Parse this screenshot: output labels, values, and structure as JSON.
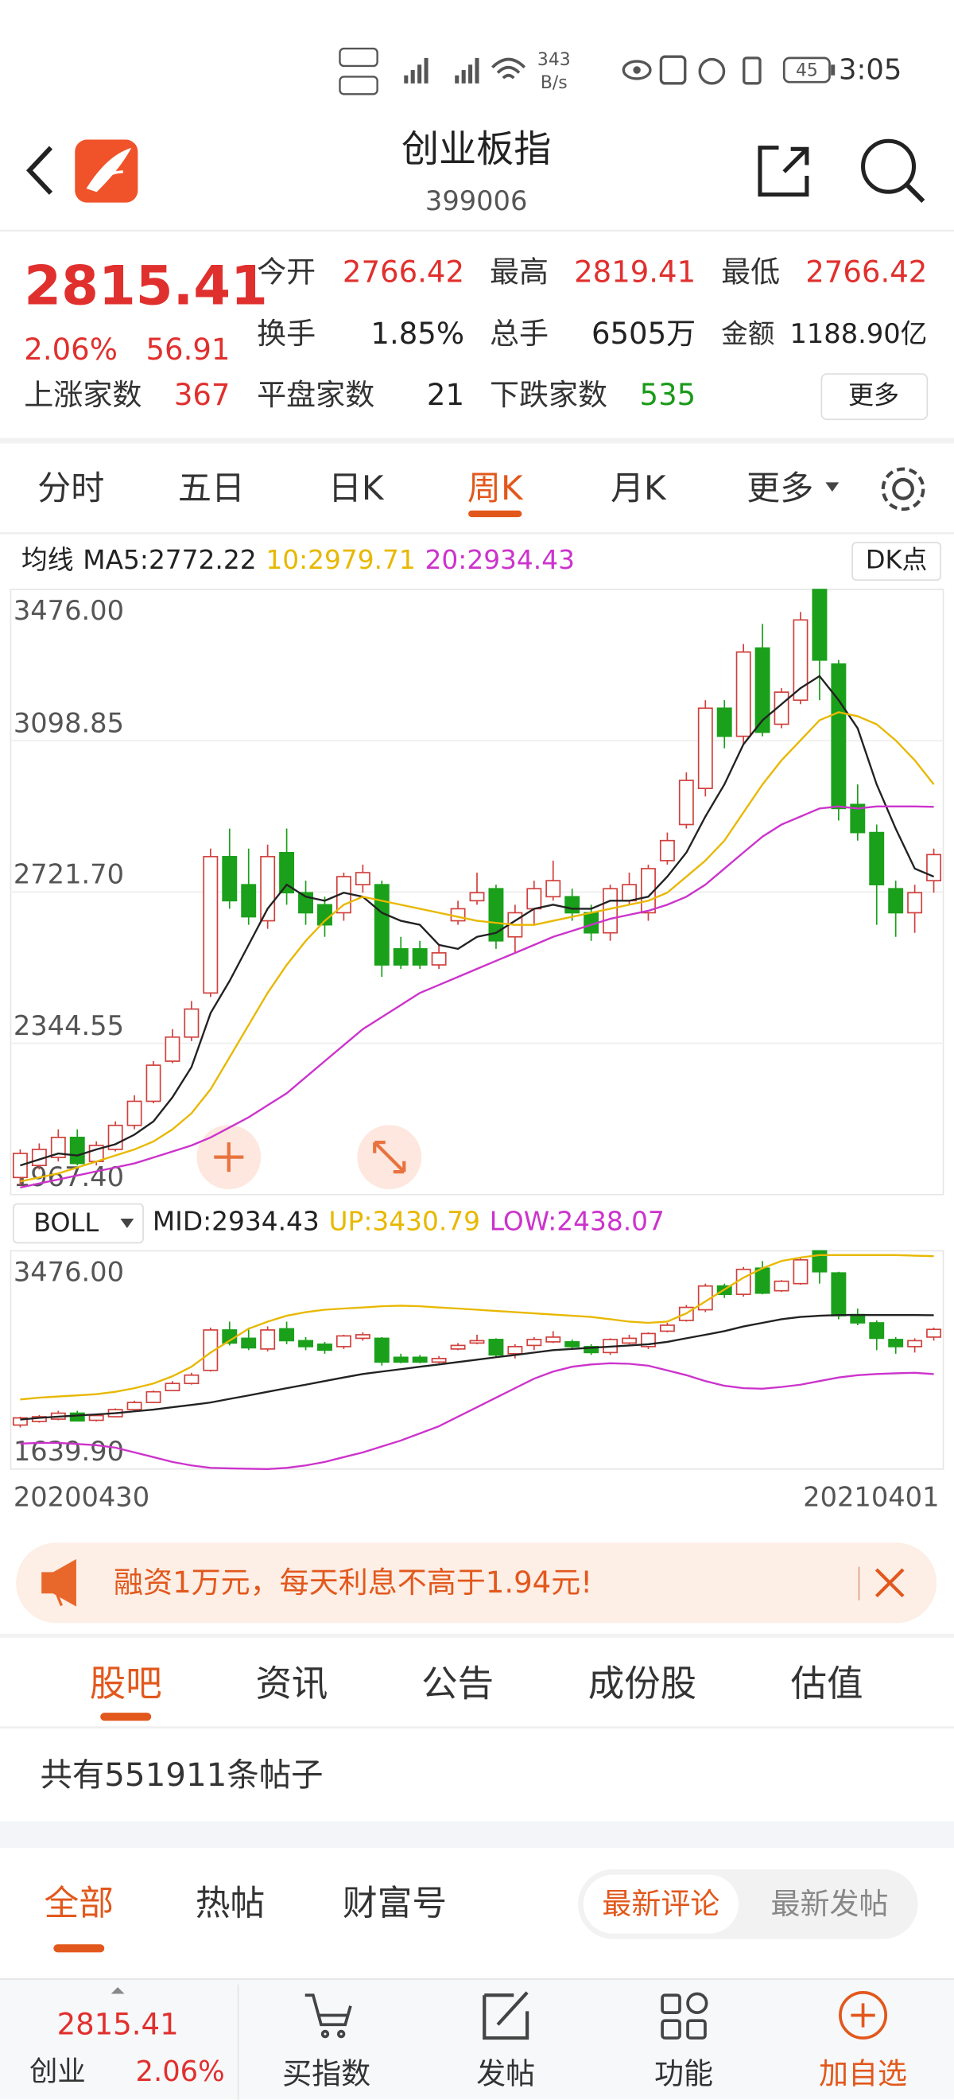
{
  "status_bar": {
    "speed": "343",
    "speed_unit": "B/s",
    "battery": "45",
    "time": "3:05"
  },
  "header": {
    "title": "创业板指",
    "code": "399006"
  },
  "quote": {
    "price": "2815.41",
    "change_pct": "2.06%",
    "change": "56.91",
    "stats": [
      {
        "label": "今开",
        "value": "2766.42",
        "color": "#e0302e"
      },
      {
        "label": "最高",
        "value": "2819.41",
        "color": "#e0302e"
      },
      {
        "label": "最低",
        "value": "2766.42",
        "color": "#e0302e"
      },
      {
        "label": "换手",
        "value": "1.85%",
        "color": "#222222"
      },
      {
        "label": "总手",
        "value": "6505万",
        "color": "#222222"
      },
      {
        "label": "金额",
        "value": "1188.90亿",
        "color": "#222222"
      },
      {
        "label": "上涨家数",
        "value": "367",
        "color": "#e0302e"
      },
      {
        "label": "平盘家数",
        "value": "21",
        "color": "#222222"
      },
      {
        "label": "下跌家数",
        "value": "535",
        "color": "#1a9a1a"
      }
    ],
    "more": "更多"
  },
  "period_tabs": [
    "分时",
    "五日",
    "日K",
    "周K",
    "月K",
    "更多"
  ],
  "active_period": 3,
  "chart_data": [
    {
      "type": "candlestick",
      "legend_title": "均线",
      "button": "DK点",
      "up_color": "#d0403c",
      "down_color": "#1aa01a",
      "grid": true,
      "ylim": [
        1967.4,
        3476
      ],
      "yticks": [
        {
          "value": 1967.4,
          "label": "1967.40"
        },
        2344.55,
        {
          "value": 2721.7,
          "label": "2721.70"
        },
        3098.85,
        {
          "value": 3476,
          "label": "3476.00"
        }
      ],
      "open": [
        2010,
        2040,
        2060,
        2110,
        2050,
        2080,
        2140,
        2200,
        2300,
        2360,
        2470,
        2810,
        2740,
        2650,
        2820,
        2720,
        2690,
        2670,
        2740,
        2740,
        2580,
        2580,
        2540,
        2650,
        2700,
        2730,
        2610,
        2680,
        2710,
        2710,
        2670,
        2620,
        2700,
        2670,
        2800,
        2890,
        2980,
        3180,
        3110,
        3330,
        3140,
        3200,
        3476,
        3290,
        2940,
        2870,
        2730,
        2670,
        2750
      ],
      "high": [
        2080,
        2095,
        2130,
        2130,
        2100,
        2150,
        2215,
        2300,
        2380,
        2450,
        2830,
        2880,
        2830,
        2840,
        2880,
        2750,
        2710,
        2770,
        2790,
        2750,
        2610,
        2600,
        2590,
        2700,
        2770,
        2740,
        2690,
        2750,
        2800,
        2730,
        2690,
        2740,
        2770,
        2790,
        2870,
        3020,
        3200,
        3200,
        3340,
        3390,
        3230,
        3420,
        3476,
        3300,
        2990,
        2890,
        2750,
        2740,
        2830
      ],
      "low": [
        1990,
        2030,
        2050,
        2040,
        2040,
        2075,
        2130,
        2195,
        2295,
        2350,
        2460,
        2680,
        2640,
        2630,
        2690,
        2640,
        2610,
        2650,
        2720,
        2510,
        2530,
        2530,
        2530,
        2640,
        2690,
        2580,
        2570,
        2640,
        2700,
        2650,
        2600,
        2600,
        2690,
        2650,
        2790,
        2880,
        2960,
        3080,
        3090,
        3110,
        3130,
        3190,
        3200,
        2900,
        2850,
        2640,
        2610,
        2620,
        2720
      ],
      "close": [
        2070,
        2080,
        2110,
        2045,
        2090,
        2140,
        2200,
        2290,
        2360,
        2430,
        2810,
        2700,
        2660,
        2810,
        2720,
        2670,
        2640,
        2760,
        2770,
        2540,
        2540,
        2540,
        2570,
        2680,
        2720,
        2600,
        2670,
        2730,
        2750,
        2670,
        2620,
        2730,
        2740,
        2780,
        2850,
        3000,
        3180,
        3110,
        3320,
        3120,
        3220,
        3400,
        3300,
        2930,
        2870,
        2740,
        2670,
        2720,
        2815
      ],
      "series": [
        {
          "label": "MA5:2772.22",
          "color": "#222222",
          "values": [
            2040,
            2055,
            2070,
            2065,
            2080,
            2093,
            2117,
            2150,
            2210,
            2285,
            2420,
            2500,
            2590,
            2680,
            2740,
            2710,
            2700,
            2720,
            2710,
            2670,
            2650,
            2640,
            2590,
            2580,
            2610,
            2620,
            2650,
            2680,
            2690,
            2680,
            2680,
            2700,
            2700,
            2710,
            2760,
            2820,
            2910,
            2990,
            3090,
            3150,
            3190,
            3230,
            3260,
            3200,
            3130,
            2990,
            2880,
            2780,
            2760
          ]
        },
        {
          "label": "10:2979.71",
          "color": "#e8b800",
          "values": [
            2000,
            2010,
            2020,
            2035,
            2050,
            2065,
            2080,
            2100,
            2130,
            2170,
            2230,
            2310,
            2390,
            2470,
            2540,
            2600,
            2650,
            2690,
            2710,
            2700,
            2690,
            2680,
            2670,
            2660,
            2650,
            2645,
            2640,
            2640,
            2650,
            2660,
            2670,
            2680,
            2690,
            2700,
            2720,
            2760,
            2800,
            2850,
            2920,
            2990,
            3050,
            3100,
            3150,
            3170,
            3160,
            3140,
            3100,
            3050,
            2990
          ]
        },
        {
          "label": "20:2934.43",
          "color": "#cc33cc",
          "values": [
            1985,
            1995,
            2005,
            2015,
            2025,
            2035,
            2045,
            2060,
            2075,
            2090,
            2110,
            2135,
            2160,
            2190,
            2220,
            2260,
            2300,
            2340,
            2380,
            2410,
            2440,
            2470,
            2490,
            2510,
            2530,
            2550,
            2570,
            2590,
            2610,
            2625,
            2640,
            2655,
            2665,
            2675,
            2690,
            2710,
            2740,
            2780,
            2820,
            2860,
            2890,
            2910,
            2930,
            2935,
            2930,
            2935,
            2935,
            2935,
            2934
          ]
        }
      ]
    },
    {
      "type": "candlestick",
      "indicator": "BOLL",
      "up_color": "#d0403c",
      "down_color": "#1aa01a",
      "grid": false,
      "categories": [
        "20200430",
        null,
        null,
        null,
        null,
        null,
        null,
        null,
        null,
        null,
        null,
        null,
        null,
        null,
        null,
        null,
        null,
        null,
        null,
        null,
        null,
        null,
        null,
        null,
        null,
        null,
        null,
        null,
        null,
        null,
        null,
        null,
        null,
        null,
        null,
        null,
        null,
        null,
        null,
        null,
        null,
        null,
        null,
        null,
        null,
        null,
        null,
        null,
        "20210401"
      ],
      "ylim": [
        1639.9,
        3476
      ],
      "yticks": [
        {
          "value": 1639.9,
          "label": "1639.90"
        },
        {
          "value": 3476,
          "label": "3476.00"
        }
      ],
      "open": [
        2010,
        2040,
        2060,
        2110,
        2050,
        2080,
        2140,
        2200,
        2300,
        2360,
        2470,
        2810,
        2740,
        2650,
        2820,
        2720,
        2690,
        2670,
        2740,
        2740,
        2580,
        2580,
        2540,
        2650,
        2700,
        2730,
        2610,
        2680,
        2710,
        2710,
        2670,
        2620,
        2700,
        2670,
        2800,
        2890,
        2980,
        3180,
        3110,
        3330,
        3140,
        3200,
        3476,
        3290,
        2940,
        2870,
        2730,
        2670,
        2750
      ],
      "high": [
        2080,
        2095,
        2130,
        2130,
        2100,
        2150,
        2215,
        2300,
        2380,
        2450,
        2830,
        2880,
        2830,
        2840,
        2880,
        2750,
        2710,
        2770,
        2790,
        2750,
        2610,
        2600,
        2590,
        2700,
        2770,
        2740,
        2690,
        2750,
        2800,
        2730,
        2690,
        2740,
        2770,
        2790,
        2870,
        3020,
        3200,
        3200,
        3340,
        3390,
        3230,
        3420,
        3476,
        3300,
        2990,
        2890,
        2750,
        2740,
        2830
      ],
      "low": [
        1990,
        2030,
        2050,
        2040,
        2040,
        2075,
        2130,
        2195,
        2295,
        2350,
        2460,
        2680,
        2640,
        2630,
        2690,
        2640,
        2610,
        2650,
        2720,
        2510,
        2530,
        2530,
        2530,
        2640,
        2690,
        2580,
        2570,
        2640,
        2700,
        2650,
        2600,
        2600,
        2690,
        2650,
        2790,
        2880,
        2960,
        3080,
        3090,
        3110,
        3130,
        3190,
        3200,
        2900,
        2850,
        2640,
        2610,
        2620,
        2720
      ],
      "close": [
        2070,
        2080,
        2110,
        2045,
        2090,
        2140,
        2200,
        2290,
        2360,
        2430,
        2810,
        2700,
        2660,
        2810,
        2720,
        2670,
        2640,
        2760,
        2770,
        2540,
        2540,
        2540,
        2570,
        2680,
        2720,
        2600,
        2670,
        2730,
        2750,
        2670,
        2620,
        2730,
        2740,
        2780,
        2850,
        3000,
        3180,
        3110,
        3320,
        3120,
        3220,
        3400,
        3300,
        2930,
        2870,
        2740,
        2670,
        2720,
        2815
      ],
      "series": [
        {
          "label": "MID:2934.43",
          "color": "#222222",
          "values": [
            2057,
            2070,
            2080,
            2090,
            2100,
            2110,
            2125,
            2140,
            2160,
            2180,
            2200,
            2230,
            2260,
            2290,
            2320,
            2350,
            2380,
            2410,
            2440,
            2460,
            2480,
            2500,
            2520,
            2540,
            2560,
            2580,
            2600,
            2620,
            2640,
            2650,
            2660,
            2670,
            2680,
            2690,
            2710,
            2740,
            2770,
            2800,
            2840,
            2870,
            2900,
            2920,
            2930,
            2935,
            2935,
            2935,
            2935,
            2935,
            2934
          ]
        },
        {
          "label": "UP:3430.79",
          "color": "#e8b800",
          "values": [
            2226,
            2240,
            2250,
            2260,
            2270,
            2290,
            2320,
            2360,
            2420,
            2500,
            2620,
            2720,
            2820,
            2880,
            2930,
            2960,
            2980,
            2990,
            3000,
            3010,
            3014,
            3010,
            3000,
            2990,
            2980,
            2970,
            2960,
            2950,
            2940,
            2930,
            2920,
            2900,
            2880,
            2870,
            2880,
            2950,
            3050,
            3150,
            3250,
            3330,
            3390,
            3420,
            3440,
            3440,
            3440,
            3440,
            3440,
            3435,
            3431
          ]
        },
        {
          "label": "LOW:2438.07",
          "color": "#cc33cc",
          "values": [
            1854,
            1860,
            1860,
            1850,
            1840,
            1820,
            1780,
            1740,
            1700,
            1670,
            1650,
            1645,
            1642,
            1640,
            1650,
            1670,
            1700,
            1740,
            1780,
            1830,
            1880,
            1940,
            2000,
            2080,
            2160,
            2240,
            2320,
            2400,
            2460,
            2500,
            2520,
            2530,
            2525,
            2510,
            2470,
            2430,
            2380,
            2340,
            2320,
            2316,
            2330,
            2350,
            2380,
            2410,
            2430,
            2440,
            2445,
            2450,
            2438
          ]
        }
      ]
    }
  ],
  "ad": {
    "text": "融资1万元，每天利息不高于1.94元!"
  },
  "news_tabs": [
    "股吧",
    "资讯",
    "公告",
    "成份股",
    "估值"
  ],
  "active_news_tab": 0,
  "posts_count": "共有551911条帖子",
  "filter_tabs": [
    "全部",
    "热帖",
    "财富号"
  ],
  "active_filter_tab": 0,
  "sort_options": [
    "最新评论",
    "最新发帖"
  ],
  "active_sort": 0,
  "bottom_bar": {
    "price": "2815.41",
    "name": "创业",
    "change_pct": "2.06%",
    "buttons": [
      "买指数",
      "发帖",
      "功能",
      "加自选"
    ]
  }
}
